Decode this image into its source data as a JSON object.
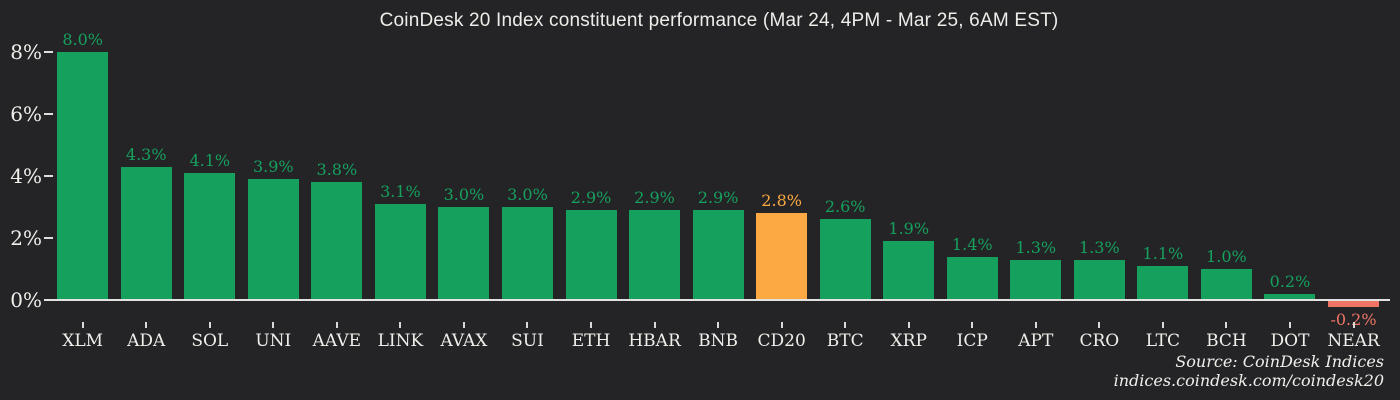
{
  "title": "CoinDesk 20 Index constituent performance (Mar 24, 4PM - Mar 25, 6AM EST)",
  "source": {
    "line1": "Source: CoinDesk Indices",
    "line2": "indices.coindesk.com/coindesk20"
  },
  "colors": {
    "background": "#242426",
    "positive_bar": "#16a05e",
    "highlight_bar": "#fda943",
    "negative_bar": "#ee7566",
    "axis_line": "#e2e2e0",
    "text": "#efeeea"
  },
  "chart_data": {
    "type": "bar",
    "title": "CoinDesk 20 Index constituent performance (Mar 24, 4PM - Mar 25, 6AM EST)",
    "categories": [
      "XLM",
      "ADA",
      "SOL",
      "UNI",
      "AAVE",
      "LINK",
      "AVAX",
      "SUI",
      "ETH",
      "HBAR",
      "BNB",
      "CD20",
      "BTC",
      "XRP",
      "ICP",
      "APT",
      "CRO",
      "LTC",
      "BCH",
      "DOT",
      "NEAR"
    ],
    "values": [
      8.0,
      4.3,
      4.1,
      3.9,
      3.8,
      3.1,
      3.0,
      3.0,
      2.9,
      2.9,
      2.9,
      2.8,
      2.6,
      1.9,
      1.4,
      1.3,
      1.3,
      1.1,
      1.0,
      0.2,
      -0.2
    ],
    "bar_labels": [
      "8.0%",
      "4.3%",
      "4.1%",
      "3.9%",
      "3.8%",
      "3.1%",
      "3.0%",
      "3.0%",
      "2.9%",
      "2.9%",
      "2.9%",
      "2.8%",
      "2.6%",
      "1.9%",
      "1.4%",
      "1.3%",
      "1.3%",
      "1.1%",
      "1.0%",
      "0.2%",
      "-0.2%"
    ],
    "highlight_category": "CD20",
    "unit": "%",
    "xlabel": "",
    "ylabel": "",
    "ylim": [
      -0.5,
      8.5
    ],
    "yticks": [
      {
        "label": "8%",
        "value": 8
      },
      {
        "label": "6%",
        "value": 6
      },
      {
        "label": "4%",
        "value": 4
      },
      {
        "label": "2%",
        "value": 2
      },
      {
        "label": "0%",
        "value": 0
      }
    ],
    "grid": false,
    "legend": null
  }
}
